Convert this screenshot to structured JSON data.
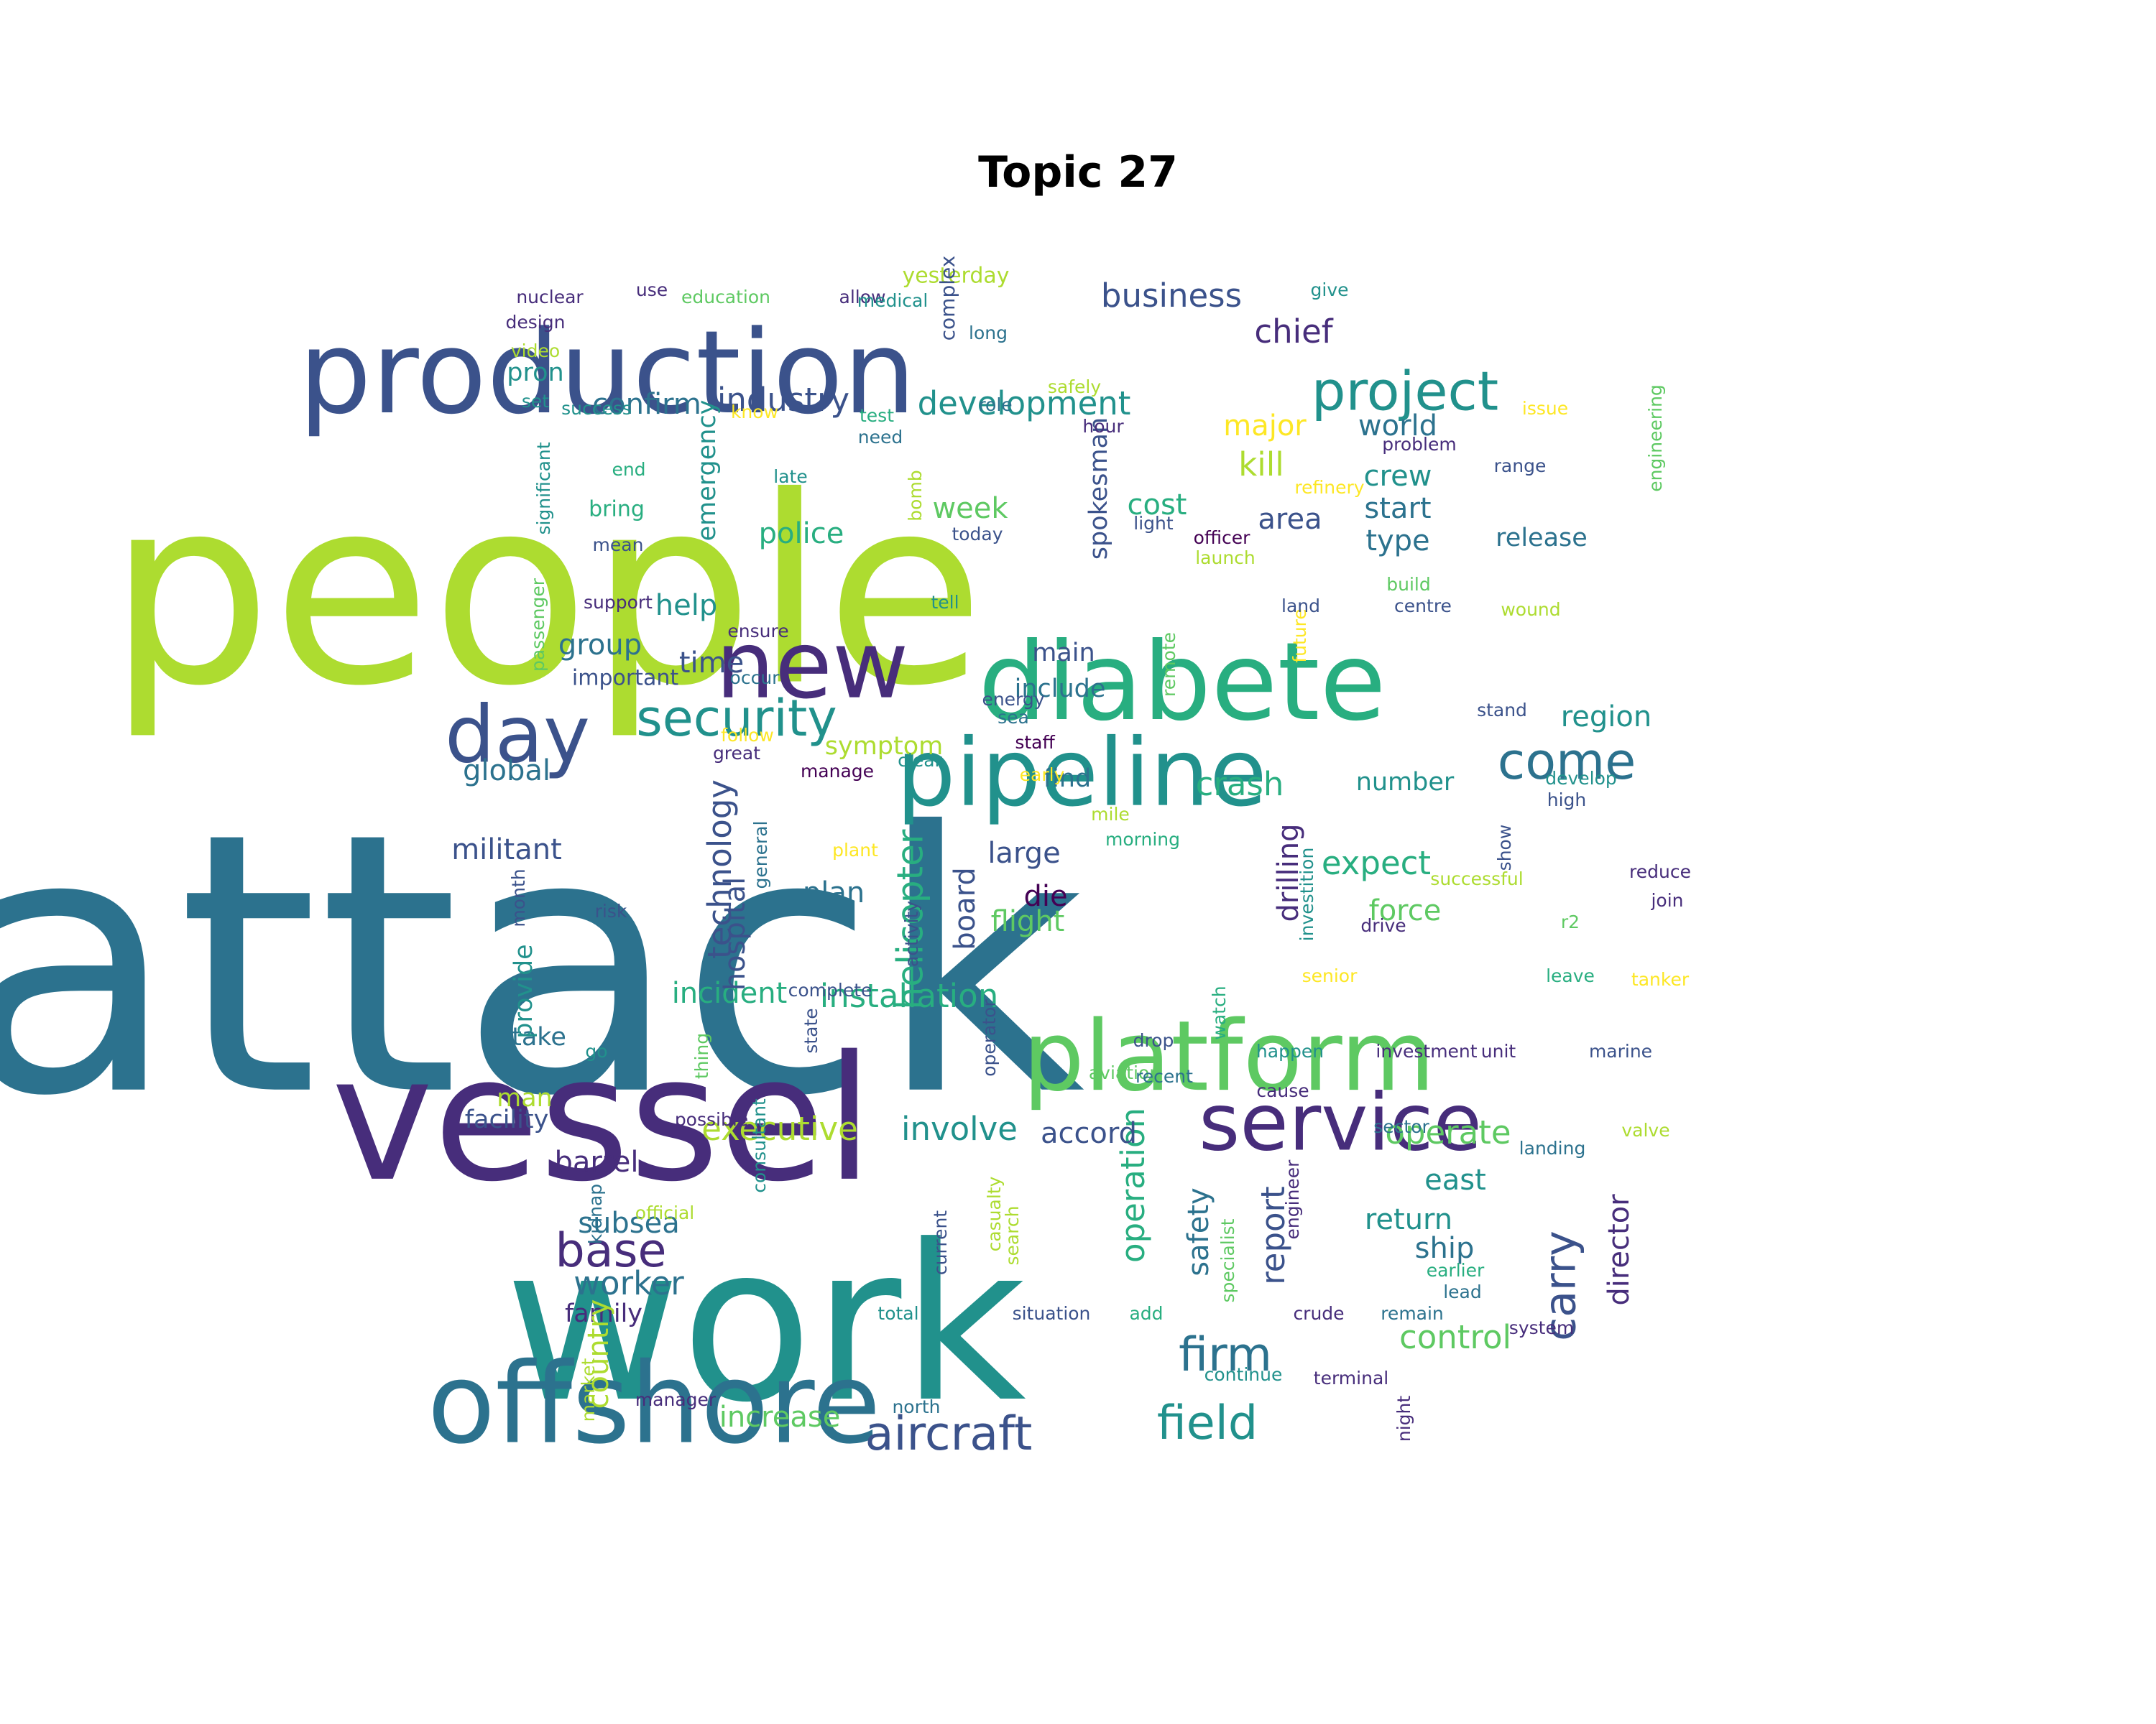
{
  "title": "Topic 27",
  "colors": {
    "c0": "#440154",
    "c1": "#472d7b",
    "c2": "#3b528b",
    "c3": "#2c728e",
    "c4": "#21918c",
    "c5": "#28ae80",
    "c6": "#5ec962",
    "c7": "#addc30",
    "c8": "#fde725"
  },
  "words": [
    {
      "text": "attack",
      "color": "c3"
    },
    {
      "text": "people",
      "color": "c7"
    },
    {
      "text": "work",
      "color": "c4"
    },
    {
      "text": "vessel",
      "color": "c1"
    },
    {
      "text": "production",
      "color": "c2"
    },
    {
      "text": "diabete",
      "color": "c5"
    },
    {
      "text": "offshore",
      "color": "c3"
    },
    {
      "text": "pipeline",
      "color": "c4"
    },
    {
      "text": "platform",
      "color": "c6"
    },
    {
      "text": "new",
      "color": "c1"
    },
    {
      "text": "service",
      "color": "c1"
    },
    {
      "text": "day",
      "color": "c2"
    },
    {
      "text": "security",
      "color": "c4"
    },
    {
      "text": "come",
      "color": "c3"
    },
    {
      "text": "project",
      "color": "c4"
    },
    {
      "text": "aircraft",
      "color": "c2"
    },
    {
      "text": "field",
      "color": "c4"
    },
    {
      "text": "firm",
      "color": "c3"
    },
    {
      "text": "base",
      "color": "c1"
    },
    {
      "text": "carry",
      "color": "c2"
    },
    {
      "text": "development",
      "color": "c4"
    },
    {
      "text": "industry",
      "color": "c2"
    },
    {
      "text": "installation",
      "color": "c5"
    },
    {
      "text": "confirm",
      "color": "c3"
    },
    {
      "text": "business",
      "color": "c2"
    },
    {
      "text": "chief",
      "color": "c1"
    },
    {
      "text": "operate",
      "color": "c6"
    },
    {
      "text": "executive",
      "color": "c7"
    },
    {
      "text": "involve",
      "color": "c4"
    },
    {
      "text": "technology",
      "color": "c2"
    },
    {
      "text": "helicopter",
      "color": "c5"
    },
    {
      "text": "operation",
      "color": "c5"
    },
    {
      "text": "crash",
      "color": "c5"
    },
    {
      "text": "expect",
      "color": "c5"
    },
    {
      "text": "incident",
      "color": "c5"
    },
    {
      "text": "control",
      "color": "c6"
    },
    {
      "text": "increase",
      "color": "c6"
    },
    {
      "text": "worker",
      "color": "c3"
    },
    {
      "text": "subsea",
      "color": "c3"
    },
    {
      "text": "return",
      "color": "c4"
    },
    {
      "text": "ship",
      "color": "c3"
    },
    {
      "text": "report",
      "color": "c2"
    },
    {
      "text": "director",
      "color": "c1"
    },
    {
      "text": "drilling",
      "color": "c1"
    },
    {
      "text": "kill",
      "color": "c7"
    },
    {
      "text": "major",
      "color": "c8"
    },
    {
      "text": "world",
      "color": "c3"
    },
    {
      "text": "crew",
      "color": "c4"
    },
    {
      "text": "start",
      "color": "c3"
    },
    {
      "text": "type",
      "color": "c3"
    },
    {
      "text": "release",
      "color": "c3"
    },
    {
      "text": "region",
      "color": "c4"
    },
    {
      "text": "number",
      "color": "c4"
    },
    {
      "text": "force",
      "color": "c6"
    },
    {
      "text": "flight",
      "color": "c6"
    },
    {
      "text": "large",
      "color": "c2"
    },
    {
      "text": "die",
      "color": "c0"
    },
    {
      "text": "plan",
      "color": "c3"
    },
    {
      "text": "board",
      "color": "c2"
    },
    {
      "text": "hospital",
      "color": "c2"
    },
    {
      "text": "safety",
      "color": "c3"
    },
    {
      "text": "accord",
      "color": "c2"
    },
    {
      "text": "barrel",
      "color": "c1"
    },
    {
      "text": "family",
      "color": "c1"
    },
    {
      "text": "country",
      "color": "c7"
    },
    {
      "text": "facility",
      "color": "c2"
    },
    {
      "text": "man",
      "color": "c7"
    },
    {
      "text": "take",
      "color": "c3"
    },
    {
      "text": "provide",
      "color": "c4"
    },
    {
      "text": "militant",
      "color": "c2"
    },
    {
      "text": "global",
      "color": "c3"
    },
    {
      "text": "group",
      "color": "c3"
    },
    {
      "text": "time",
      "color": "c2"
    },
    {
      "text": "help",
      "color": "c4"
    },
    {
      "text": "police",
      "color": "c5"
    },
    {
      "text": "week",
      "color": "c6"
    },
    {
      "text": "cost",
      "color": "c5"
    },
    {
      "text": "area",
      "color": "c2"
    },
    {
      "text": "main",
      "color": "c2"
    },
    {
      "text": "include",
      "color": "c3"
    },
    {
      "text": "find",
      "color": "c3"
    },
    {
      "text": "symptom",
      "color": "c7"
    },
    {
      "text": "spokesman",
      "color": "c2"
    },
    {
      "text": "emergency",
      "color": "c4"
    },
    {
      "text": "east",
      "color": "c4"
    },
    {
      "text": "pron",
      "color": "c4"
    },
    {
      "text": "yesterday",
      "color": "c7"
    },
    {
      "text": "nuclear",
      "color": "c1"
    },
    {
      "text": "use",
      "color": "c1"
    },
    {
      "text": "education",
      "color": "c6"
    },
    {
      "text": "allow",
      "color": "c1"
    },
    {
      "text": "medical",
      "color": "c4"
    },
    {
      "text": "complex",
      "color": "c2"
    },
    {
      "text": "give",
      "color": "c4"
    },
    {
      "text": "design",
      "color": "c1"
    },
    {
      "text": "long",
      "color": "c3"
    },
    {
      "text": "video",
      "color": "c7"
    },
    {
      "text": "safely",
      "color": "c7"
    },
    {
      "text": "set",
      "color": "c4"
    },
    {
      "text": "success",
      "color": "c4"
    },
    {
      "text": "know",
      "color": "c8"
    },
    {
      "text": "test",
      "color": "c5"
    },
    {
      "text": "role",
      "color": "c3"
    },
    {
      "text": "issue",
      "color": "c8"
    },
    {
      "text": "engineering",
      "color": "c6"
    },
    {
      "text": "significant",
      "color": "c4"
    },
    {
      "text": "hour",
      "color": "c1"
    },
    {
      "text": "need",
      "color": "c3"
    },
    {
      "text": "problem",
      "color": "c1"
    },
    {
      "text": "end",
      "color": "c5"
    },
    {
      "text": "late",
      "color": "c4"
    },
    {
      "text": "bomb",
      "color": "c7"
    },
    {
      "text": "range",
      "color": "c2"
    },
    {
      "text": "refinery",
      "color": "c8"
    },
    {
      "text": "bring",
      "color": "c5"
    },
    {
      "text": "today",
      "color": "c2"
    },
    {
      "text": "light",
      "color": "c2"
    },
    {
      "text": "officer",
      "color": "c0"
    },
    {
      "text": "mean",
      "color": "c2"
    },
    {
      "text": "launch",
      "color": "c7"
    },
    {
      "text": "build",
      "color": "c6"
    },
    {
      "text": "passenger",
      "color": "c6"
    },
    {
      "text": "support",
      "color": "c1"
    },
    {
      "text": "tell",
      "color": "c4"
    },
    {
      "text": "remote",
      "color": "c6"
    },
    {
      "text": "future",
      "color": "c8"
    },
    {
      "text": "land",
      "color": "c2"
    },
    {
      "text": "centre",
      "color": "c2"
    },
    {
      "text": "wound",
      "color": "c7"
    },
    {
      "text": "ensure",
      "color": "c1"
    },
    {
      "text": "occur",
      "color": "c3"
    },
    {
      "text": "important",
      "color": "c2"
    },
    {
      "text": "energy",
      "color": "c2"
    },
    {
      "text": "sea",
      "color": "c3"
    },
    {
      "text": "stand",
      "color": "c2"
    },
    {
      "text": "follow",
      "color": "c8"
    },
    {
      "text": "great",
      "color": "c1"
    },
    {
      "text": "staff",
      "color": "c0"
    },
    {
      "text": "clear",
      "color": "c4"
    },
    {
      "text": "manage",
      "color": "c0"
    },
    {
      "text": "early",
      "color": "c8"
    },
    {
      "text": "high",
      "color": "c2"
    },
    {
      "text": "develop",
      "color": "c4"
    },
    {
      "text": "mile",
      "color": "c7"
    },
    {
      "text": "plant",
      "color": "c8"
    },
    {
      "text": "morning",
      "color": "c5"
    },
    {
      "text": "general",
      "color": "c3"
    },
    {
      "text": "successful",
      "color": "c7"
    },
    {
      "text": "show",
      "color": "c2"
    },
    {
      "text": "reduce",
      "color": "c1"
    },
    {
      "text": "investition",
      "color": "c4"
    },
    {
      "text": "join",
      "color": "c1"
    },
    {
      "text": "month",
      "color": "c2"
    },
    {
      "text": "risk",
      "color": "c2"
    },
    {
      "text": "activity",
      "color": "c2"
    },
    {
      "text": "drive",
      "color": "c1"
    },
    {
      "text": "r2",
      "color": "c6"
    },
    {
      "text": "senior",
      "color": "c8"
    },
    {
      "text": "leave",
      "color": "c5"
    },
    {
      "text": "tanker",
      "color": "c8"
    },
    {
      "text": "complete",
      "color": "c2"
    },
    {
      "text": "watch",
      "color": "c5"
    },
    {
      "text": "drop",
      "color": "c2"
    },
    {
      "text": "state",
      "color": "c2"
    },
    {
      "text": "operator",
      "color": "c2"
    },
    {
      "text": "happen",
      "color": "c4"
    },
    {
      "text": "investment",
      "color": "c1"
    },
    {
      "text": "unit",
      "color": "c1"
    },
    {
      "text": "marine",
      "color": "c2"
    },
    {
      "text": "thing",
      "color": "c6"
    },
    {
      "text": "go",
      "color": "c4"
    },
    {
      "text": "aviation",
      "color": "c6"
    },
    {
      "text": "recent",
      "color": "c3"
    },
    {
      "text": "cause",
      "color": "c1"
    },
    {
      "text": "possible",
      "color": "c1"
    },
    {
      "text": "sector",
      "color": "c3"
    },
    {
      "text": "valve",
      "color": "c7"
    },
    {
      "text": "consultant",
      "color": "c4"
    },
    {
      "text": "landing",
      "color": "c3"
    },
    {
      "text": "kidnap",
      "color": "c3"
    },
    {
      "text": "official",
      "color": "c7"
    },
    {
      "text": "casualty",
      "color": "c7"
    },
    {
      "text": "search",
      "color": "c7"
    },
    {
      "text": "current",
      "color": "c2"
    },
    {
      "text": "specialist",
      "color": "c6"
    },
    {
      "text": "engineer",
      "color": "c1"
    },
    {
      "text": "earlier",
      "color": "c5"
    },
    {
      "text": "lead",
      "color": "c3"
    },
    {
      "text": "add",
      "color": "c5"
    },
    {
      "text": "situation",
      "color": "c2"
    },
    {
      "text": "total",
      "color": "c4"
    },
    {
      "text": "crude",
      "color": "c1"
    },
    {
      "text": "remain",
      "color": "c3"
    },
    {
      "text": "system",
      "color": "c1"
    },
    {
      "text": "market",
      "color": "c7"
    },
    {
      "text": "continue",
      "color": "c4"
    },
    {
      "text": "terminal",
      "color": "c1"
    },
    {
      "text": "night",
      "color": "c1"
    },
    {
      "text": "manager",
      "color": "c1"
    },
    {
      "text": "north",
      "color": "c3"
    }
  ]
}
